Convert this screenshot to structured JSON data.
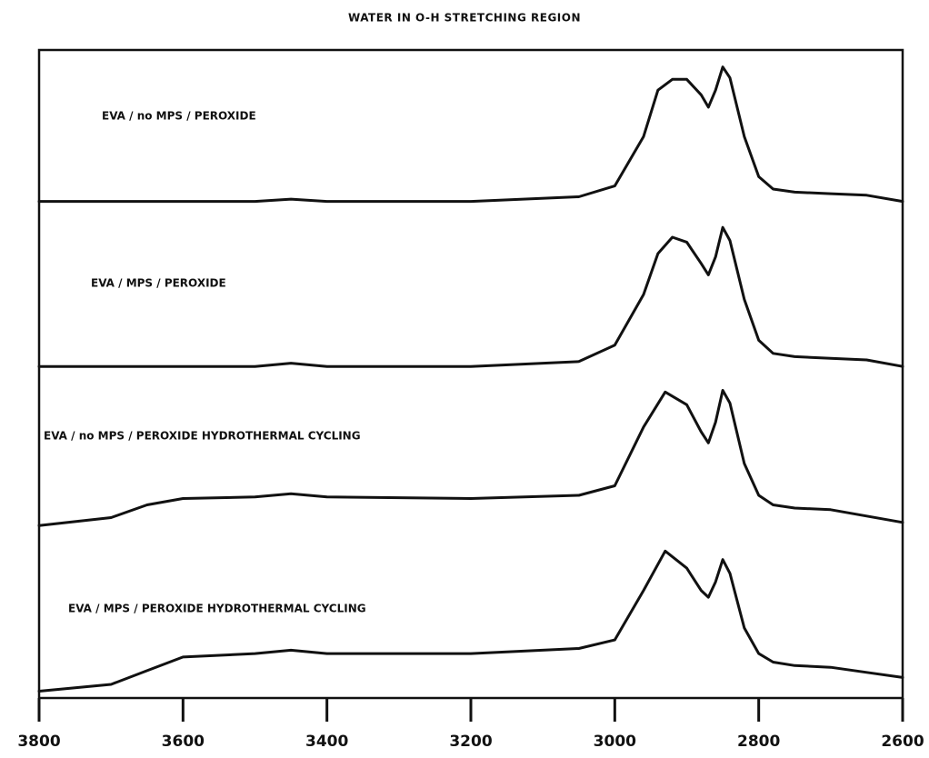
{
  "chart_data": [
    {
      "type": "line",
      "title": "WATER IN O-H STRETCHING REGION",
      "annotation": "EVA / no MPS / PEROXIDE",
      "x": [
        3800,
        3700,
        3600,
        3500,
        3450,
        3400,
        3200,
        3050,
        3000,
        2960,
        2940,
        2920,
        2900,
        2880,
        2870,
        2860,
        2850,
        2840,
        2820,
        2800,
        2780,
        2750,
        2700,
        2650,
        2600
      ],
      "values": [
        0.02,
        0.02,
        0.02,
        0.02,
        0.035,
        0.02,
        0.02,
        0.05,
        0.12,
        0.44,
        0.74,
        0.81,
        0.81,
        0.71,
        0.63,
        0.74,
        0.89,
        0.82,
        0.44,
        0.18,
        0.1,
        0.08,
        0.07,
        0.06,
        0.02
      ],
      "xlim": [
        3800,
        2600
      ],
      "ylim": [
        0,
        1
      ],
      "color": "#111111"
    },
    {
      "type": "line",
      "annotation": "EVA / MPS / PEROXIDE",
      "x": [
        3800,
        3700,
        3600,
        3500,
        3450,
        3400,
        3200,
        3050,
        3000,
        2960,
        2940,
        2920,
        2900,
        2880,
        2870,
        2860,
        2850,
        2840,
        2820,
        2800,
        2780,
        2750,
        2700,
        2650,
        2600
      ],
      "values": [
        0.01,
        0.01,
        0.01,
        0.01,
        0.03,
        0.01,
        0.01,
        0.04,
        0.14,
        0.45,
        0.7,
        0.8,
        0.77,
        0.64,
        0.57,
        0.68,
        0.86,
        0.78,
        0.42,
        0.17,
        0.09,
        0.07,
        0.06,
        0.05,
        0.01
      ],
      "xlim": [
        3800,
        2600
      ],
      "ylim": [
        0,
        1
      ],
      "color": "#111111"
    },
    {
      "type": "line",
      "annotation": "EVA / no MPS / PEROXIDE   HYDROTHERMAL CYCLING",
      "x": [
        3800,
        3700,
        3650,
        3600,
        3500,
        3450,
        3400,
        3200,
        3050,
        3000,
        2960,
        2930,
        2900,
        2880,
        2870,
        2860,
        2850,
        2840,
        2820,
        2800,
        2780,
        2750,
        2700,
        2650,
        2600
      ],
      "values": [
        0.01,
        0.06,
        0.14,
        0.18,
        0.19,
        0.21,
        0.19,
        0.18,
        0.2,
        0.26,
        0.63,
        0.85,
        0.77,
        0.6,
        0.53,
        0.66,
        0.86,
        0.78,
        0.4,
        0.2,
        0.14,
        0.12,
        0.11,
        0.07,
        0.03
      ],
      "xlim": [
        3800,
        2600
      ],
      "ylim": [
        0,
        1
      ],
      "color": "#111111"
    },
    {
      "type": "line",
      "annotation": "EVA / MPS / PEROXIDE   HYDROTHERMAL CYCLING",
      "x": [
        3800,
        3700,
        3650,
        3600,
        3500,
        3450,
        3400,
        3200,
        3050,
        3000,
        2960,
        2930,
        2900,
        2880,
        2870,
        2860,
        2850,
        2840,
        2820,
        2800,
        2780,
        2750,
        2700,
        2650,
        2600
      ],
      "values": [
        0.04,
        0.08,
        0.16,
        0.24,
        0.26,
        0.28,
        0.26,
        0.26,
        0.29,
        0.34,
        0.63,
        0.86,
        0.76,
        0.63,
        0.59,
        0.68,
        0.81,
        0.73,
        0.41,
        0.26,
        0.21,
        0.19,
        0.18,
        0.15,
        0.12
      ],
      "xlim": [
        3800,
        2600
      ],
      "ylim": [
        0,
        1
      ],
      "color": "#111111",
      "xticks": [
        3800,
        3600,
        3400,
        3200,
        3000,
        2800,
        2600
      ]
    }
  ]
}
